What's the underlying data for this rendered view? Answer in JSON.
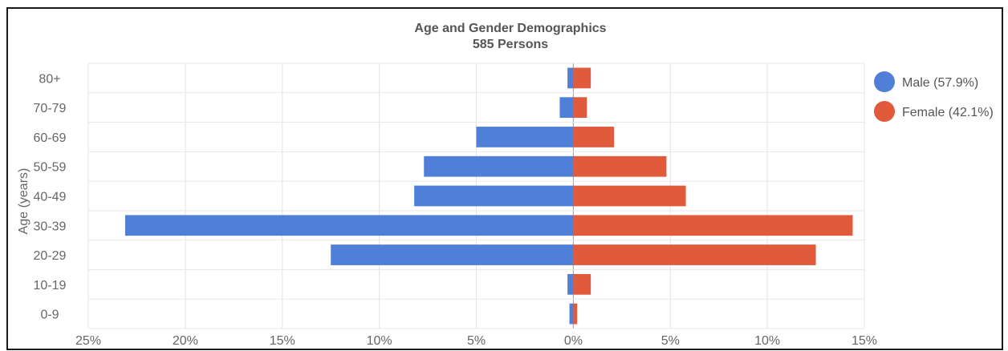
{
  "chart_data": {
    "type": "bar",
    "orientation": "horizontal",
    "layout": "population-pyramid",
    "title": "Age and Gender Demographics",
    "subtitle": "585 Persons",
    "ylabel": "Age (years)",
    "xlabel": "",
    "categories": [
      "80+",
      "70-79",
      "60-69",
      "50-59",
      "40-49",
      "30-39",
      "20-29",
      "10-19",
      "0-9"
    ],
    "xlim": [
      -25,
      15
    ],
    "x_ticks": [
      -25,
      -20,
      -15,
      -10,
      -5,
      0,
      5,
      10,
      15
    ],
    "x_tick_labels": [
      "25%",
      "20%",
      "15%",
      "10%",
      "5%",
      "0%",
      "5%",
      "10%",
      "15%"
    ],
    "grid": true,
    "legend_position": "right",
    "series": [
      {
        "name": "Male (57.9%)",
        "color": "#4f7fd6",
        "values": [
          -0.3,
          -0.7,
          -5.0,
          -7.7,
          -8.2,
          -23.1,
          -12.5,
          -0.3,
          -0.2
        ]
      },
      {
        "name": "Female (42.1%)",
        "color": "#e15a3c",
        "values": [
          0.9,
          0.7,
          2.1,
          4.8,
          5.8,
          14.4,
          12.5,
          0.9,
          0.2
        ]
      }
    ]
  }
}
